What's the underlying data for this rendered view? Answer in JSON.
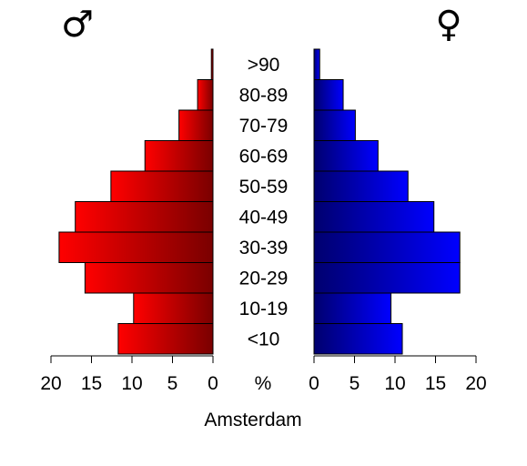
{
  "chart_data": {
    "type": "bar",
    "orientation": "horizontal-butterfly",
    "title": "Amsterdam",
    "center_axis_label": "%",
    "categories": [
      "<10",
      "10-19",
      "20-29",
      "30-39",
      "40-49",
      "50-59",
      "60-69",
      "70-79",
      "80-89",
      ">90"
    ],
    "series": [
      {
        "symbol": "♂",
        "side": "left",
        "color": "#ff0000",
        "color_dark": "#7a0000",
        "values": [
          11.7,
          9.8,
          15.8,
          19.0,
          17.0,
          12.6,
          8.4,
          4.2,
          1.9,
          0.2
        ]
      },
      {
        "symbol": "♀",
        "side": "right",
        "color": "#0000ff",
        "color_dark": "#00006e",
        "values": [
          10.9,
          9.5,
          18.0,
          18.0,
          14.8,
          11.6,
          7.9,
          5.1,
          3.6,
          0.7
        ]
      }
    ],
    "xlim": [
      0,
      20
    ],
    "xticks": [
      0,
      5,
      10,
      15,
      20
    ],
    "grid": false
  }
}
